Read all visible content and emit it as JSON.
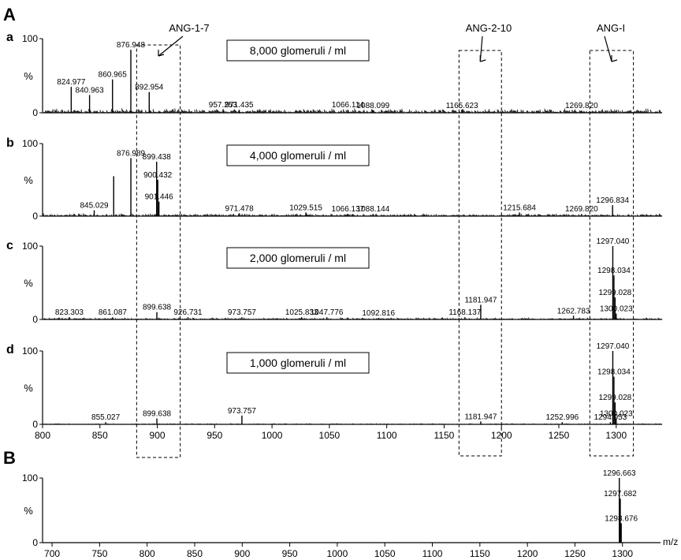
{
  "figure": {
    "panel_A_letter": "A",
    "panel_B_letter": "B"
  },
  "chart_data": [
    {
      "id": "a",
      "type": "line",
      "letter": "a",
      "condition": "8,000 glomeruli / ml",
      "ylabel": "%",
      "y_ticks": [
        "0",
        "100"
      ],
      "ylim": [
        0,
        100
      ],
      "xlim": [
        800,
        1340
      ],
      "x_ticks": [],
      "x_tick_labels": [],
      "noise": 5,
      "peaks": [
        {
          "x": 824.977,
          "y": 35,
          "label": "824.977"
        },
        {
          "x": 840.963,
          "y": 24,
          "label": "840.963"
        },
        {
          "x": 860.965,
          "y": 45,
          "label": "860.965"
        },
        {
          "x": 876.948,
          "y": 85,
          "label": "876.948"
        },
        {
          "x": 892.954,
          "y": 28,
          "label": "892.954"
        },
        {
          "x": 957.253,
          "y": 4,
          "label": "957.253"
        },
        {
          "x": 971.435,
          "y": 4,
          "label": "971.435"
        },
        {
          "x": 1066.114,
          "y": 4,
          "label": "1066.114"
        },
        {
          "x": 1088.099,
          "y": 3,
          "label": "1088.099"
        },
        {
          "x": 1165.623,
          "y": 3,
          "label": "1165.623"
        },
        {
          "x": 1269.82,
          "y": 3,
          "label": "1269.820"
        }
      ]
    },
    {
      "id": "b",
      "type": "line",
      "letter": "b",
      "condition": "4,000 glomeruli / ml",
      "ylabel": "%",
      "y_ticks": [
        "0",
        "100"
      ],
      "ylim": [
        0,
        100
      ],
      "xlim": [
        800,
        1340
      ],
      "x_ticks": [],
      "x_tick_labels": [],
      "noise": 3,
      "peaks": [
        {
          "x": 845.029,
          "y": 8,
          "label": "845.029"
        },
        {
          "x": 862,
          "y": 55,
          "label": ""
        },
        {
          "x": 876.989,
          "y": 80,
          "label": "876.989"
        },
        {
          "x": 899.438,
          "y": 75,
          "label": "899.438"
        },
        {
          "x": 900.432,
          "y": 50,
          "label": "900.432"
        },
        {
          "x": 901.446,
          "y": 20,
          "label": "901.446"
        },
        {
          "x": 971.478,
          "y": 4,
          "label": "971.478"
        },
        {
          "x": 1029.515,
          "y": 5,
          "label": "1029.515"
        },
        {
          "x": 1066.137,
          "y": 3,
          "label": "1066.137"
        },
        {
          "x": 1088.144,
          "y": 3,
          "label": "1088.144"
        },
        {
          "x": 1215.684,
          "y": 5,
          "label": "1215.684"
        },
        {
          "x": 1269.82,
          "y": 3,
          "label": "1269.820"
        },
        {
          "x": 1296.834,
          "y": 15,
          "label": "1296.834"
        }
      ]
    },
    {
      "id": "c",
      "type": "line",
      "letter": "c",
      "condition": "2,000 glomeruli / ml",
      "ylabel": "%",
      "y_ticks": [
        "0",
        "100"
      ],
      "ylim": [
        0,
        100
      ],
      "xlim": [
        800,
        1340
      ],
      "x_ticks": [],
      "x_tick_labels": [],
      "noise": 2,
      "peaks": [
        {
          "x": 823.303,
          "y": 3,
          "label": "823.303"
        },
        {
          "x": 861.087,
          "y": 3,
          "label": "861.087"
        },
        {
          "x": 899.638,
          "y": 10,
          "label": "899.638"
        },
        {
          "x": 926.731,
          "y": 3,
          "label": "926.731"
        },
        {
          "x": 973.757,
          "y": 3,
          "label": "973.757"
        },
        {
          "x": 1025.833,
          "y": 3,
          "label": "1025.833"
        },
        {
          "x": 1047.776,
          "y": 3,
          "label": "1047.776"
        },
        {
          "x": 1092.816,
          "y": 2,
          "label": "1092.816"
        },
        {
          "x": 1168.137,
          "y": 3,
          "label": "1168.137"
        },
        {
          "x": 1181.947,
          "y": 20,
          "label": "1181.947"
        },
        {
          "x": 1262.783,
          "y": 5,
          "label": "1262.783"
        },
        {
          "x": 1297.04,
          "y": 100,
          "label": "1297.040"
        },
        {
          "x": 1298.034,
          "y": 60,
          "label": "1298.034"
        },
        {
          "x": 1299.028,
          "y": 30,
          "label": "1299.028"
        },
        {
          "x": 1300.023,
          "y": 8,
          "label": "1300.023"
        }
      ]
    },
    {
      "id": "d",
      "type": "line",
      "letter": "d",
      "condition": "1,000 glomeruli / ml",
      "ylabel": "%",
      "y_ticks": [
        "0",
        "100"
      ],
      "ylim": [
        0,
        100
      ],
      "xlim": [
        800,
        1340
      ],
      "x_ticks": [
        800,
        850,
        900,
        950,
        1000,
        1050,
        1100,
        1150,
        1200,
        1250,
        1300
      ],
      "x_tick_labels": [
        "800",
        "850",
        "900",
        "950",
        "1000",
        "1050",
        "1100",
        "1150",
        "1200",
        "1250",
        "1300"
      ],
      "noise": 1,
      "peaks": [
        {
          "x": 855.027,
          "y": 3,
          "label": "855.027"
        },
        {
          "x": 899.638,
          "y": 8,
          "label": "899.638"
        },
        {
          "x": 973.757,
          "y": 12,
          "label": "973.757"
        },
        {
          "x": 1181.947,
          "y": 4,
          "label": "1181.947"
        },
        {
          "x": 1252.996,
          "y": 3,
          "label": "1252.996"
        },
        {
          "x": 1294.953,
          "y": 3,
          "label": "1294.953"
        },
        {
          "x": 1297.04,
          "y": 100,
          "label": "1297.040"
        },
        {
          "x": 1298.034,
          "y": 65,
          "label": "1298.034"
        },
        {
          "x": 1299.028,
          "y": 30,
          "label": "1299.028"
        },
        {
          "x": 1300.023,
          "y": 8,
          "label": "1300.023"
        }
      ]
    },
    {
      "id": "B",
      "type": "line",
      "letter": "",
      "condition": "",
      "ylabel": "%",
      "y_ticks": [
        "0",
        "100"
      ],
      "ylim": [
        0,
        100
      ],
      "xlim": [
        690,
        1340
      ],
      "x_ticks": [
        700,
        750,
        800,
        850,
        900,
        950,
        1000,
        1050,
        1100,
        1150,
        1200,
        1250,
        1300
      ],
      "x_tick_labels": [
        "700",
        "750",
        "800",
        "850",
        "900",
        "950",
        "1000",
        "1050",
        "1100",
        "1150",
        "1200",
        "1250",
        "1300"
      ],
      "xlabel": "m/z",
      "noise": 0,
      "peaks": [
        {
          "x": 1296.663,
          "y": 100,
          "label": "1296.663"
        },
        {
          "x": 1297.682,
          "y": 68,
          "label": "1297.682"
        },
        {
          "x": 1298.676,
          "y": 30,
          "label": "1298.676"
        }
      ]
    }
  ],
  "regions": [
    {
      "label": "ANG-1-7",
      "x_start": 882,
      "x_end": 920
    },
    {
      "label": "ANG-2-10",
      "x_start": 1163,
      "x_end": 1200
    },
    {
      "label": "ANG-I",
      "x_start": 1277,
      "x_end": 1315
    }
  ]
}
